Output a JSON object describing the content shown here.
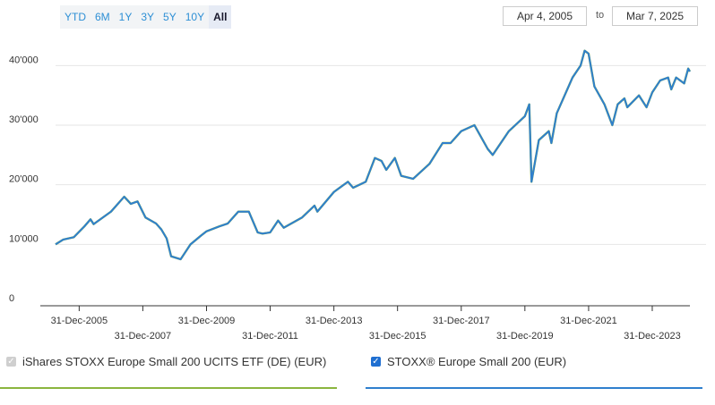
{
  "range_buttons": [
    "YTD",
    "6M",
    "1Y",
    "3Y",
    "5Y",
    "10Y",
    "All"
  ],
  "active_range": "All",
  "date_from": "Apr 4, 2005",
  "date_to_label": "to",
  "date_to": "Mar 7, 2025",
  "colors": {
    "etf": "#8ab53f",
    "index": "#2f7fce",
    "grid": "#e6e6e6",
    "active_bg": "#e6ebf5"
  },
  "legend": {
    "etf_label": "iShares STOXX Europe Small 200 UCITS ETF (DE) (EUR)",
    "index_label": "STOXX® Europe Small 200 (EUR)",
    "etf_checked": true,
    "index_checked": true
  },
  "chart_data": {
    "type": "line",
    "xlabel": "",
    "ylabel": "",
    "ylim": [
      0,
      45000
    ],
    "y_ticks": [
      0,
      10000,
      20000,
      30000,
      40000
    ],
    "y_tick_labels": [
      "0",
      "10'000",
      "20'000",
      "30'000",
      "40'000"
    ],
    "x_ticks": [
      "2005-12-31",
      "2007-12-31",
      "2009-12-31",
      "2011-12-31",
      "2013-12-31",
      "2015-12-31",
      "2017-12-31",
      "2019-12-31",
      "2021-12-31",
      "2023-12-31"
    ],
    "x_tick_labels": [
      "31-Dec-2005",
      "31-Dec-2007",
      "31-Dec-2009",
      "31-Dec-2011",
      "31-Dec-2013",
      "31-Dec-2015",
      "31-Dec-2017",
      "31-Dec-2019",
      "31-Dec-2021",
      "31-Dec-2023"
    ],
    "x_range": [
      "2005-04-04",
      "2025-03-07"
    ],
    "grid": true,
    "series": [
      {
        "name": "iShares STOXX Europe Small 200 UCITS ETF (DE) (EUR)",
        "x": [
          "2005-04-04",
          "2005-06-30",
          "2005-10-31",
          "2006-02-28",
          "2006-05-10",
          "2006-06-15",
          "2006-12-31",
          "2007-05-31",
          "2007-08-15",
          "2007-10-31",
          "2008-01-31",
          "2008-05-31",
          "2008-07-31",
          "2008-09-30",
          "2008-11-20",
          "2009-03-09",
          "2009-06-30",
          "2009-10-31",
          "2009-12-31",
          "2010-05-25",
          "2010-08-31",
          "2010-12-31",
          "2011-04-30",
          "2011-08-10",
          "2011-10-04",
          "2011-12-31",
          "2012-03-31",
          "2012-06-04",
          "2012-12-31",
          "2013-05-22",
          "2013-06-24",
          "2013-12-31",
          "2014-06-10",
          "2014-08-08",
          "2014-12-31",
          "2015-04-15",
          "2015-06-30",
          "2015-08-24",
          "2015-11-30",
          "2016-02-11",
          "2016-06-27",
          "2016-12-31",
          "2017-05-31",
          "2017-08-31",
          "2017-12-31",
          "2018-05-31",
          "2018-10-31",
          "2018-12-27",
          "2019-06-30",
          "2019-12-31",
          "2020-02-19",
          "2020-03-16",
          "2020-06-08",
          "2020-09-30",
          "2020-10-30",
          "2020-12-31",
          "2021-06-30",
          "2021-09-30",
          "2021-11-15",
          "2021-12-31",
          "2022-03-07",
          "2022-06-30",
          "2022-09-29",
          "2022-11-30",
          "2023-02-15",
          "2023-03-20",
          "2023-07-31",
          "2023-10-27",
          "2023-12-31",
          "2024-03-31",
          "2024-06-30",
          "2024-08-05",
          "2024-09-30",
          "2024-12-31",
          "2025-02-15",
          "2025-03-07"
        ],
        "values": [
          10000,
          10800,
          11200,
          13000,
          14200,
          13400,
          15500,
          18000,
          16800,
          17200,
          14500,
          13500,
          12500,
          11000,
          8000,
          7500,
          10000,
          11500,
          12200,
          13000,
          13500,
          15500,
          15500,
          12000,
          11800,
          12000,
          14000,
          12800,
          14500,
          16500,
          15500,
          18800,
          20500,
          19500,
          20500,
          24500,
          24000,
          22500,
          24500,
          21500,
          21000,
          23500,
          27000,
          27000,
          29000,
          30000,
          26000,
          25000,
          29000,
          31500,
          33500,
          20500,
          27500,
          29000,
          27000,
          32000,
          38000,
          40000,
          42500,
          42000,
          36500,
          33500,
          30000,
          33500,
          34500,
          33000,
          35000,
          33000,
          35500,
          37500,
          38000,
          36000,
          38000,
          37000,
          39500,
          39000
        ]
      },
      {
        "name": "STOXX® Europe Small 200 (EUR)",
        "x": [
          "2005-04-04",
          "2005-06-30",
          "2005-10-31",
          "2006-02-28",
          "2006-05-10",
          "2006-06-15",
          "2006-12-31",
          "2007-05-31",
          "2007-08-15",
          "2007-10-31",
          "2008-01-31",
          "2008-05-31",
          "2008-07-31",
          "2008-09-30",
          "2008-11-20",
          "2009-03-09",
          "2009-06-30",
          "2009-10-31",
          "2009-12-31",
          "2010-05-25",
          "2010-08-31",
          "2010-12-31",
          "2011-04-30",
          "2011-08-10",
          "2011-10-04",
          "2011-12-31",
          "2012-03-31",
          "2012-06-04",
          "2012-12-31",
          "2013-05-22",
          "2013-06-24",
          "2013-12-31",
          "2014-06-10",
          "2014-08-08",
          "2014-12-31",
          "2015-04-15",
          "2015-06-30",
          "2015-08-24",
          "2015-11-30",
          "2016-02-11",
          "2016-06-27",
          "2016-12-31",
          "2017-05-31",
          "2017-08-31",
          "2017-12-31",
          "2018-05-31",
          "2018-10-31",
          "2018-12-27",
          "2019-06-30",
          "2019-12-31",
          "2020-02-19",
          "2020-03-16",
          "2020-06-08",
          "2020-09-30",
          "2020-10-30",
          "2020-12-31",
          "2021-06-30",
          "2021-09-30",
          "2021-11-15",
          "2021-12-31",
          "2022-03-07",
          "2022-06-30",
          "2022-09-29",
          "2022-11-30",
          "2023-02-15",
          "2023-03-20",
          "2023-07-31",
          "2023-10-27",
          "2023-12-31",
          "2024-03-31",
          "2024-06-30",
          "2024-08-05",
          "2024-09-30",
          "2024-12-31",
          "2025-02-15",
          "2025-03-07"
        ],
        "values": [
          10000,
          10800,
          11200,
          13000,
          14200,
          13400,
          15500,
          18000,
          16800,
          17200,
          14500,
          13500,
          12500,
          11000,
          8000,
          7500,
          10000,
          11500,
          12200,
          13000,
          13500,
          15500,
          15500,
          12000,
          11800,
          12000,
          14000,
          12800,
          14500,
          16500,
          15500,
          18800,
          20500,
          19500,
          20500,
          24500,
          24000,
          22500,
          24500,
          21500,
          21000,
          23500,
          27000,
          27000,
          29000,
          30000,
          26000,
          25000,
          29000,
          31500,
          33500,
          20500,
          27500,
          29000,
          27000,
          32000,
          38000,
          40000,
          42500,
          42000,
          36500,
          33500,
          30000,
          33500,
          34500,
          33000,
          35000,
          33000,
          35500,
          37500,
          38000,
          36000,
          38000,
          37000,
          39500,
          39000
        ]
      }
    ]
  }
}
